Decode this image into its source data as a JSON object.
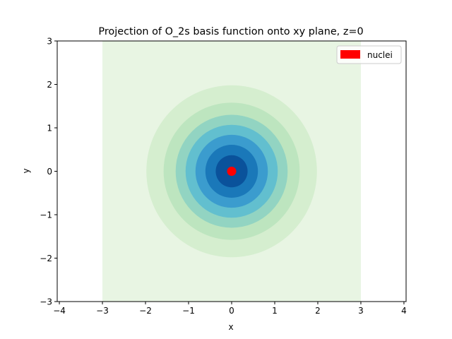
{
  "chart_data": {
    "type": "contour",
    "title": "Projection of O_2s basis function onto xy plane, z=0",
    "xlabel": "x",
    "ylabel": "y",
    "xlim": [
      -4.05,
      4.05
    ],
    "ylim": [
      -3,
      3
    ],
    "x_ticks": [
      -4,
      -3,
      -2,
      -1,
      0,
      1,
      2,
      3,
      4
    ],
    "y_ticks": [
      -3,
      -2,
      -1,
      0,
      1,
      2,
      3
    ],
    "x_tick_labels": [
      "−4",
      "−3",
      "−2",
      "−1",
      "0",
      "1",
      "2",
      "3",
      "4"
    ],
    "y_tick_labels": [
      "−3",
      "−2",
      "−1",
      "0",
      "1",
      "2",
      "3"
    ],
    "grid_extent": {
      "x": [
        -3,
        3
      ],
      "y": [
        -3,
        3
      ]
    },
    "contour_levels": [
      {
        "radius": 3.0,
        "color": "#e8f5e3",
        "square": true
      },
      {
        "radius": 1.98,
        "color": "#d5eecf"
      },
      {
        "radius": 1.58,
        "color": "#bde5bf"
      },
      {
        "radius": 1.3,
        "color": "#92d4c2"
      },
      {
        "radius": 1.07,
        "color": "#62bfcf"
      },
      {
        "radius": 0.84,
        "color": "#3b9cce"
      },
      {
        "radius": 0.61,
        "color": "#1a78b9"
      },
      {
        "radius": 0.37,
        "color": "#0a529b"
      }
    ],
    "nuclei": [
      {
        "x": 0,
        "y": 0,
        "color": "#ff0000"
      }
    ],
    "legend": {
      "placement": "top-right",
      "entries": [
        {
          "label": "nuclei",
          "color": "#ff0000"
        }
      ]
    },
    "grid": false
  }
}
